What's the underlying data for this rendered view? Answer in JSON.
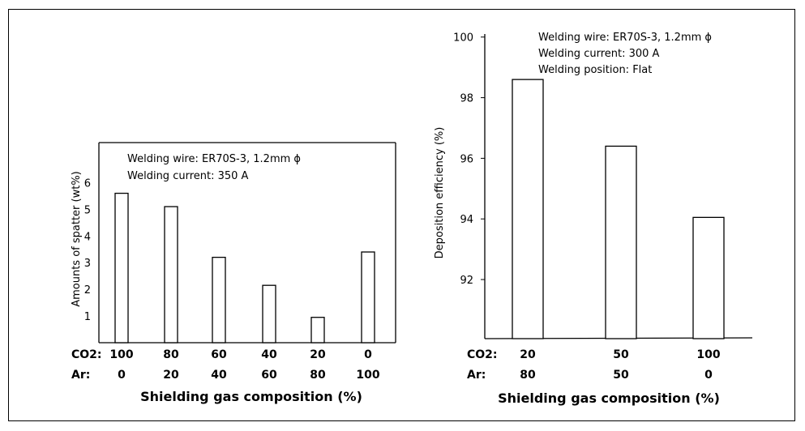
{
  "chart_data": [
    {
      "type": "bar",
      "categories": [
        "100/0",
        "80/20",
        "60/40",
        "40/60",
        "20/80",
        "0/100"
      ],
      "co2": [
        "100",
        "80",
        "60",
        "40",
        "20",
        "0"
      ],
      "ar": [
        "0",
        "20",
        "40",
        "60",
        "80",
        "100"
      ],
      "values": [
        5.6,
        5.1,
        3.2,
        2.15,
        0.95,
        3.4
      ],
      "xlabel": "Shielding gas composition (%)",
      "ylabel": "Amounts of spatter (wt%)",
      "ylim": [
        0,
        7.5
      ],
      "yticks": [
        "1",
        "2",
        "3",
        "4",
        "5",
        "6"
      ],
      "row_labels": {
        "co2": "CO2:",
        "ar": "Ar:"
      },
      "annotations": [
        "Welding wire: ER70S-3, 1.2mm ϕ",
        "Welding current: 350 A"
      ]
    },
    {
      "type": "bar",
      "categories": [
        "20/80",
        "50/50",
        "100/0"
      ],
      "co2": [
        "20",
        "50",
        "100"
      ],
      "ar": [
        "80",
        "50",
        "0"
      ],
      "values": [
        98.6,
        96.4,
        94.05
      ],
      "xlabel": "Shielding gas composition (%)",
      "ylabel": "Deposition efficiency (%)",
      "ylim": [
        90.05,
        100.1
      ],
      "yticks": [
        "92",
        "94",
        "96",
        "98",
        "100"
      ],
      "row_labels": {
        "co2": "CO2:",
        "ar": "Ar:"
      },
      "annotations": [
        "Welding wire: ER70S-3, 1.2mm ϕ",
        "Welding current: 300 A",
        "Welding position: Flat"
      ]
    }
  ]
}
